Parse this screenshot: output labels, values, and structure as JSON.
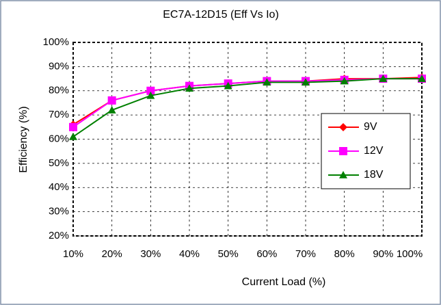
{
  "chart_data": {
    "type": "line",
    "title": "EC7A-12D15  (Eff Vs Io)",
    "x_label": "Current Load (%)",
    "y_label": "Efficiency (%)",
    "x": [
      10,
      20,
      30,
      40,
      50,
      60,
      70,
      80,
      90,
      100
    ],
    "series": [
      {
        "name": "9V",
        "color": "#ff0000",
        "marker": "diamond",
        "values": [
          66,
          76,
          80,
          82,
          83,
          84,
          84,
          85,
          85,
          85.5
        ]
      },
      {
        "name": "12V",
        "color": "#ff00ff",
        "marker": "square",
        "values": [
          65,
          76,
          80,
          82,
          83,
          84,
          84,
          84.5,
          85,
          85
        ]
      },
      {
        "name": "18V",
        "color": "#008000",
        "marker": "triangle",
        "values": [
          61,
          72,
          78,
          81,
          82,
          83.5,
          83.5,
          84,
          85,
          85
        ]
      }
    ],
    "xlim": [
      10,
      100
    ],
    "xticks": [
      {
        "value": 10,
        "label": "10%"
      },
      {
        "value": 20,
        "label": "20%"
      },
      {
        "value": 30,
        "label": "30%"
      },
      {
        "value": 40,
        "label": "40%"
      },
      {
        "value": 50,
        "label": "50%"
      },
      {
        "value": 60,
        "label": "60%"
      },
      {
        "value": 70,
        "label": "70%"
      },
      {
        "value": 80,
        "label": "80%"
      },
      {
        "value": 90,
        "label": "90%"
      },
      {
        "value": 100,
        "label": "100%"
      }
    ],
    "ylim": [
      20,
      100
    ],
    "yticks": [
      {
        "value": 20,
        "label": "20%"
      },
      {
        "value": 30,
        "label": "30%"
      },
      {
        "value": 40,
        "label": "40%"
      },
      {
        "value": 50,
        "label": "50%"
      },
      {
        "value": 60,
        "label": "60%"
      },
      {
        "value": 70,
        "label": "70%"
      },
      {
        "value": 80,
        "label": "80%"
      },
      {
        "value": 90,
        "label": "90%"
      },
      {
        "value": 100,
        "label": "100%"
      }
    ],
    "grid": true,
    "legend": "right"
  }
}
